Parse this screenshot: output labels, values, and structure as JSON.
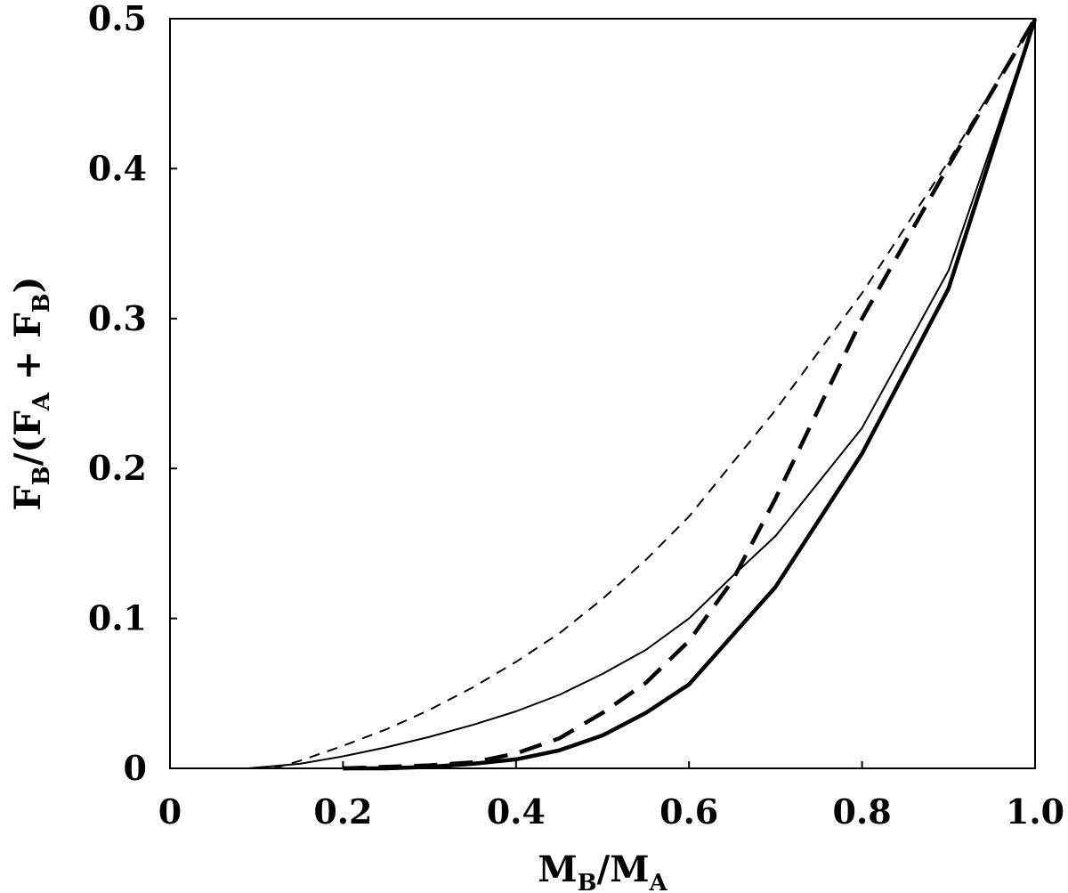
{
  "chart_data": {
    "type": "line",
    "xlabel": {
      "main1": "M",
      "sub1": "B",
      "mid": "/M",
      "sub2": "A"
    },
    "ylabel": {
      "main1": "F",
      "sub1": "B",
      "mid1": "/(F",
      "sub2": "A",
      "mid2": " + F",
      "sub3": "B",
      "end": ")"
    },
    "xlim": [
      0,
      1.0
    ],
    "ylim": [
      0,
      0.5
    ],
    "xticks": [
      {
        "value": 0,
        "label": "0"
      },
      {
        "value": 0.2,
        "label": "0.2"
      },
      {
        "value": 0.4,
        "label": "0.4"
      },
      {
        "value": 0.6,
        "label": "0.6"
      },
      {
        "value": 0.8,
        "label": "0.8"
      },
      {
        "value": 1.0,
        "label": "1.0"
      }
    ],
    "yticks": [
      {
        "value": 0,
        "label": "0"
      },
      {
        "value": 0.1,
        "label": "0.1"
      },
      {
        "value": 0.2,
        "label": "0.2"
      },
      {
        "value": 0.3,
        "label": "0.3"
      },
      {
        "value": 0.4,
        "label": "0.4"
      },
      {
        "value": 0.5,
        "label": "0.5"
      }
    ],
    "grid": false,
    "series": [
      {
        "style": "thin-dashed",
        "x": [
          0.12,
          0.15,
          0.2,
          0.25,
          0.3,
          0.35,
          0.4,
          0.45,
          0.5,
          0.55,
          0.6,
          0.7,
          0.8,
          0.9,
          1.0
        ],
        "y": [
          0.0,
          0.005,
          0.015,
          0.026,
          0.039,
          0.054,
          0.071,
          0.09,
          0.113,
          0.139,
          0.168,
          0.239,
          0.317,
          0.405,
          0.5
        ]
      },
      {
        "style": "thin-solid",
        "x": [
          0.09,
          0.15,
          0.2,
          0.25,
          0.3,
          0.35,
          0.4,
          0.45,
          0.5,
          0.55,
          0.6,
          0.65,
          0.7,
          0.8,
          0.9,
          1.0
        ],
        "y": [
          0.0,
          0.003,
          0.008,
          0.014,
          0.021,
          0.029,
          0.038,
          0.049,
          0.063,
          0.079,
          0.1,
          0.128,
          0.155,
          0.227,
          0.332,
          0.5
        ]
      },
      {
        "style": "thick-dashed",
        "x": [
          0.2,
          0.25,
          0.3,
          0.35,
          0.4,
          0.45,
          0.5,
          0.55,
          0.6,
          0.65,
          0.7,
          0.8,
          0.9,
          1.0
        ],
        "y": [
          0.0,
          0.001,
          0.002,
          0.004,
          0.01,
          0.02,
          0.037,
          0.057,
          0.085,
          0.125,
          0.18,
          0.3,
          0.402,
          0.5
        ]
      },
      {
        "style": "thick-solid",
        "x": [
          0.2,
          0.25,
          0.3,
          0.35,
          0.4,
          0.45,
          0.5,
          0.55,
          0.6,
          0.7,
          0.8,
          0.9,
          1.0
        ],
        "y": [
          0.0,
          0.0,
          0.001,
          0.003,
          0.006,
          0.012,
          0.022,
          0.037,
          0.056,
          0.121,
          0.21,
          0.32,
          0.5
        ]
      }
    ]
  }
}
